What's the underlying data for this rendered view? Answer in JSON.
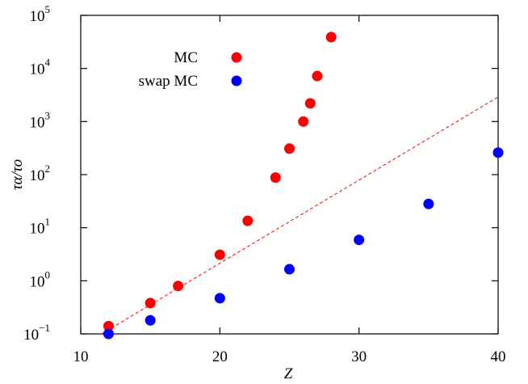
{
  "chart_data": {
    "type": "scatter",
    "x_label": "Z",
    "y_label": "τα/τo",
    "log_y": true,
    "xlim": [
      10,
      40
    ],
    "xticks": [
      10,
      20,
      30,
      40
    ],
    "ylim": [
      0.1,
      100000
    ],
    "yticks": [
      {
        "value": 0.1,
        "label": "10",
        "exponent": "−1"
      },
      {
        "value": 1,
        "label": "10",
        "exponent": "0"
      },
      {
        "value": 10,
        "label": "10",
        "exponent": "1"
      },
      {
        "value": 100,
        "label": "10",
        "exponent": "2"
      },
      {
        "value": 1000,
        "label": "10",
        "exponent": "3"
      },
      {
        "value": 10000,
        "label": "10",
        "exponent": "4"
      },
      {
        "value": 100000,
        "label": "10",
        "exponent": "5"
      }
    ],
    "legend": "upper-left",
    "series": [
      {
        "name": "MC",
        "color": "#ff0000",
        "x": [
          12,
          15,
          17,
          20,
          22,
          24,
          25,
          26,
          26.5,
          27,
          28
        ],
        "values": [
          0.14,
          0.38,
          0.8,
          3.1,
          13.5,
          88,
          310,
          1000,
          2200,
          7200,
          39000
        ]
      },
      {
        "name": "swap MC",
        "color": "#0000ff",
        "x": [
          12,
          15,
          20,
          25,
          30,
          35,
          40
        ],
        "values": [
          0.1,
          0.18,
          0.47,
          1.65,
          5.9,
          28,
          260
        ]
      }
    ],
    "fit_line": {
      "color": "#ff0000",
      "x": [
        11.5,
        40
      ],
      "values": [
        0.1,
        2900
      ]
    }
  }
}
